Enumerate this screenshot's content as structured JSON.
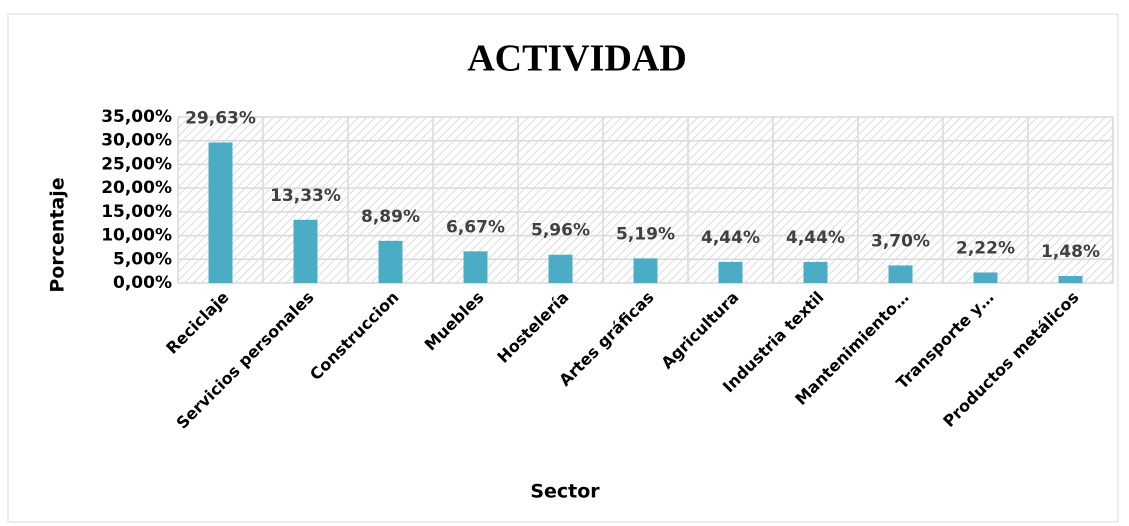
{
  "chart_data": {
    "type": "bar",
    "title": "ACTIVIDAD",
    "x_label": "Sector",
    "y_label": "Porcentaje",
    "categories": [
      "Reciclaje",
      "Servicios personales",
      "Construccion",
      "Muebles",
      "Hostelería",
      "Artes gráficas",
      "Agricultura",
      "Industria textil",
      "Mantenimiento…",
      "Transporte y…",
      "Productos metálicos"
    ],
    "values": [
      29.63,
      13.33,
      8.89,
      6.67,
      5.96,
      5.19,
      4.44,
      4.44,
      3.7,
      2.22,
      1.48
    ],
    "value_labels": [
      "29,63%",
      "13,33%",
      "8,89%",
      "6,67%",
      "5,96%",
      "5,19%",
      "4,44%",
      "4,44%",
      "3,70%",
      "2,22%",
      "1,48%"
    ],
    "color": "#4bacc6",
    "ylim": [
      0,
      35
    ],
    "yticks": [
      {
        "value": 0,
        "label": "0,00%"
      },
      {
        "value": 5,
        "label": "5,00%"
      },
      {
        "value": 10,
        "label": "10,00%"
      },
      {
        "value": 15,
        "label": "15,00%"
      },
      {
        "value": 20,
        "label": "20,00%"
      },
      {
        "value": 25,
        "label": "25,00%"
      },
      {
        "value": 30,
        "label": "30,00%"
      },
      {
        "value": 35,
        "label": "35,00%"
      }
    ],
    "grid": true
  }
}
